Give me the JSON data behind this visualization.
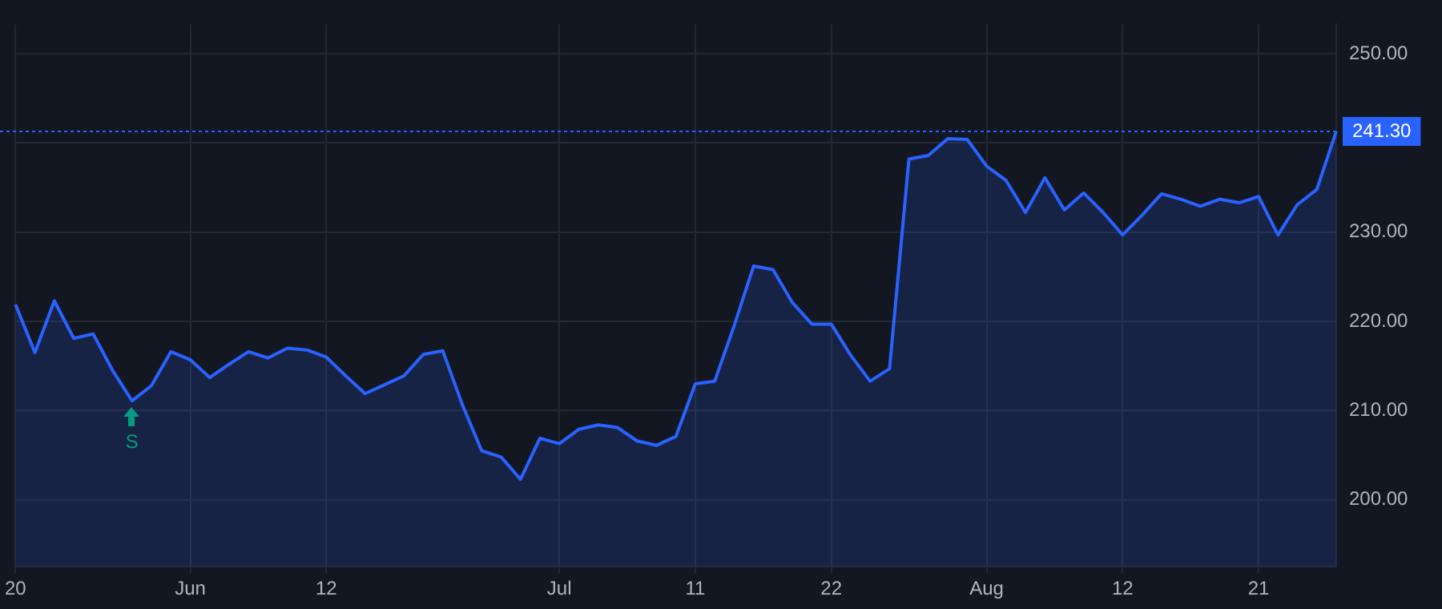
{
  "chart_data": {
    "type": "area",
    "categories": [
      "20",
      null,
      null,
      null,
      null,
      null,
      null,
      null,
      null,
      "Jun",
      null,
      null,
      null,
      null,
      null,
      null,
      "12",
      null,
      null,
      null,
      null,
      null,
      null,
      null,
      null,
      null,
      null,
      null,
      "Jul",
      null,
      null,
      null,
      null,
      null,
      null,
      "11",
      null,
      null,
      null,
      null,
      null,
      null,
      "22",
      null,
      null,
      null,
      null,
      null,
      null,
      null,
      "Aug",
      null,
      null,
      null,
      null,
      null,
      null,
      "12",
      null,
      null,
      null,
      null,
      null,
      null,
      "21",
      null,
      null,
      null,
      null
    ],
    "series": [
      {
        "color": "#2962ff",
        "values": [
          221.9,
          216.5,
          222.3,
          218.1,
          218.6,
          214.5,
          211.1,
          212.8,
          216.6,
          215.7,
          213.7,
          215.2,
          216.6,
          215.9,
          217.0,
          216.8,
          216.0,
          213.9,
          211.9,
          212.9,
          213.9,
          216.3,
          216.7,
          210.7,
          205.5,
          204.8,
          202.3,
          206.9,
          206.3,
          207.9,
          208.4,
          208.1,
          206.6,
          206.1,
          207.1,
          213.0,
          213.3,
          219.5,
          226.2,
          225.8,
          222.1,
          219.7,
          219.7,
          216.2,
          213.3,
          214.7,
          238.2,
          238.6,
          240.5,
          240.4,
          237.4,
          235.8,
          232.2,
          236.1,
          232.5,
          234.4,
          232.2,
          229.7,
          231.9,
          234.3,
          233.7,
          232.9,
          233.7,
          233.3,
          234.0,
          229.7,
          233.1,
          234.8,
          241.3
        ]
      }
    ],
    "ylim": [
      192.5,
      253.3
    ],
    "yticks": [
      {
        "value": 200,
        "label": "200.00"
      },
      {
        "value": 210,
        "label": "210.00"
      },
      {
        "value": 220,
        "label": "220.00"
      },
      {
        "value": 230,
        "label": "230.00"
      },
      {
        "value": 240,
        "label": null
      },
      {
        "value": 250,
        "label": "250.00"
      }
    ],
    "ref_lines": [
      {
        "axis": "y",
        "value": 241.3,
        "label": "241.30",
        "color": "#2962ff",
        "line_style": "dotted"
      }
    ],
    "annotations": [
      {
        "text": "S",
        "y": 211.1
      }
    ],
    "grid": true,
    "legend": false,
    "marker": "none",
    "line_style": "solid"
  }
}
